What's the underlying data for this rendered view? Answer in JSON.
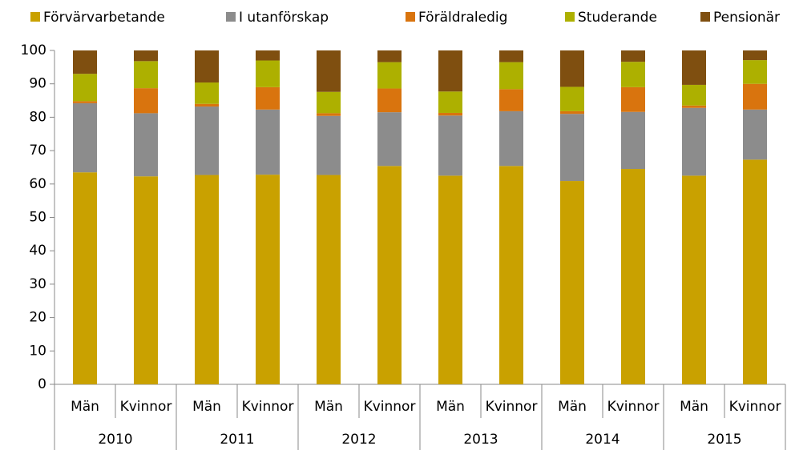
{
  "chart_data": {
    "type": "stacked_bar",
    "groups": [
      "2010",
      "2011",
      "2012",
      "2013",
      "2014",
      "2015"
    ],
    "categories": [
      "Män",
      "Kvinnor",
      "Män",
      "Kvinnor",
      "Män",
      "Kvinnor",
      "Män",
      "Kvinnor",
      "Män",
      "Kvinnor",
      "Män",
      "Kvinnor"
    ],
    "series": [
      {
        "name": "Förvärvarbetande",
        "color": "#c9a100",
        "values": [
          63.5,
          62.3,
          62.7,
          62.8,
          62.7,
          65.4,
          62.5,
          65.4,
          60.9,
          64.5,
          62.5,
          67.3
        ]
      },
      {
        "name": "I utanförskap",
        "color": "#8c8c8c",
        "values": [
          20.7,
          18.9,
          20.5,
          19.5,
          17.7,
          16.1,
          18.0,
          16.4,
          20.1,
          17.1,
          20.3,
          15.0
        ]
      },
      {
        "name": "Föräldraledig",
        "color": "#d9740e",
        "values": [
          0.6,
          7.5,
          0.8,
          6.7,
          0.8,
          7.1,
          0.8,
          6.6,
          0.8,
          7.4,
          0.7,
          7.7
        ]
      },
      {
        "name": "Studerande",
        "color": "#adb000",
        "values": [
          8.2,
          8.1,
          6.4,
          8.0,
          6.4,
          7.9,
          6.4,
          8.1,
          7.3,
          7.6,
          6.2,
          7.1
        ]
      },
      {
        "name": "Pensionär",
        "color": "#7f4f10",
        "values": [
          7.0,
          3.2,
          9.6,
          3.0,
          12.4,
          3.5,
          12.3,
          3.5,
          10.9,
          3.4,
          10.3,
          2.9
        ]
      }
    ],
    "ylim": [
      0,
      100
    ],
    "yticks": [
      0,
      10,
      20,
      30,
      40,
      50,
      60,
      70,
      80,
      90,
      100
    ],
    "grid": false
  }
}
